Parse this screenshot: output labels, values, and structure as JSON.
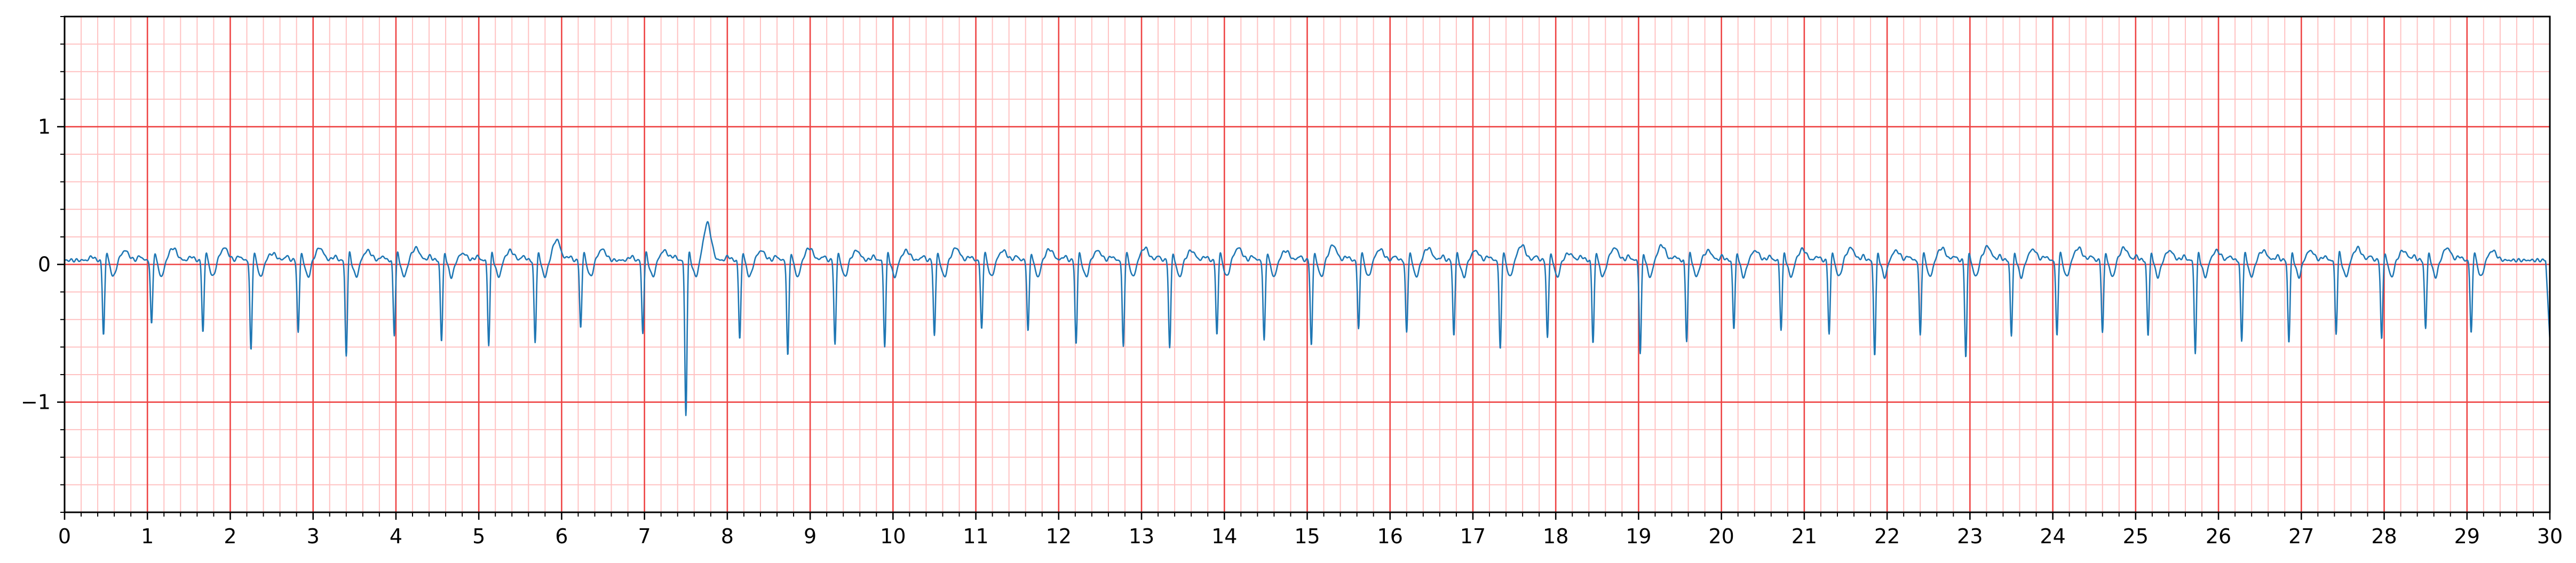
{
  "chart_data": {
    "type": "line",
    "title": "",
    "xlabel": "",
    "ylabel": "",
    "xlim": [
      0,
      30
    ],
    "ylim": [
      -1.8,
      1.8
    ],
    "x_ticks": [
      0,
      1,
      2,
      3,
      4,
      5,
      6,
      7,
      8,
      9,
      10,
      11,
      12,
      13,
      14,
      15,
      16,
      17,
      18,
      19,
      20,
      21,
      22,
      23,
      24,
      25,
      26,
      27,
      28,
      29,
      30
    ],
    "x_tick_labels": [
      "0",
      "1",
      "2",
      "3",
      "4",
      "5",
      "6",
      "7",
      "8",
      "9",
      "10",
      "11",
      "12",
      "13",
      "14",
      "15",
      "16",
      "17",
      "18",
      "19",
      "20",
      "21",
      "22",
      "23",
      "24",
      "25",
      "26",
      "27",
      "28",
      "29",
      "30"
    ],
    "y_ticks": [
      -1,
      0,
      1
    ],
    "y_tick_labels": [
      "−1",
      "0",
      "1"
    ],
    "grid": {
      "major": true,
      "minor": true,
      "x_major_step": 1,
      "x_minor_step": 0.2,
      "y_major_step": 1,
      "y_minor_step": 0.2,
      "major_color": "#ee4444",
      "minor_color": "#ffc2c2"
    },
    "series": [
      {
        "color": "#1f77b4",
        "beat_times": [
          0.47,
          1.05,
          1.67,
          2.25,
          2.82,
          3.4,
          3.98,
          4.55,
          5.12,
          5.68,
          6.23,
          6.98,
          7.5,
          8.15,
          8.73,
          9.3,
          9.9,
          10.5,
          11.07,
          11.63,
          12.21,
          12.78,
          13.34,
          13.91,
          14.48,
          15.05,
          15.62,
          16.2,
          16.77,
          17.33,
          17.9,
          18.45,
          19.02,
          19.58,
          20.15,
          20.72,
          21.3,
          21.85,
          22.4,
          22.95,
          23.5,
          24.05,
          24.6,
          25.15,
          25.72,
          26.28,
          26.85,
          27.42,
          27.97,
          28.5,
          29.05
        ],
        "beat_depths": [
          -0.54,
          -0.47,
          -0.52,
          -0.66,
          -0.53,
          -0.69,
          -0.54,
          -0.59,
          -0.61,
          -0.6,
          -0.49,
          -0.53,
          -1.12,
          -0.57,
          -0.7,
          -0.61,
          -0.62,
          -0.55,
          -0.5,
          -0.52,
          -0.61,
          -0.63,
          -0.64,
          -0.54,
          -0.59,
          -0.62,
          -0.5,
          -0.53,
          -0.55,
          -0.65,
          -0.57,
          -0.6,
          -0.68,
          -0.58,
          -0.5,
          -0.5,
          -0.53,
          -0.69,
          -0.55,
          -0.7,
          -0.55,
          -0.55,
          -0.52,
          -0.55,
          -0.67,
          -0.59,
          -0.6,
          -0.53,
          -0.58,
          -0.5,
          -0.53
        ],
        "t_wave_heights": [
          0.1,
          0.12,
          0.12,
          0.08,
          0.12,
          0.1,
          0.12,
          0.08,
          0.1,
          0.18,
          0.11,
          0.1,
          0.3,
          0.1,
          0.12,
          0.1,
          0.1,
          0.12,
          0.1,
          0.11,
          0.1,
          0.12,
          0.1,
          0.12,
          0.1,
          0.14,
          0.11,
          0.12,
          0.1,
          0.14,
          0.08,
          0.12,
          0.14,
          0.1,
          0.1,
          0.11,
          0.12,
          0.1,
          0.12,
          0.13,
          0.11,
          0.12,
          0.12,
          0.1,
          0.1,
          0.1,
          0.1,
          0.12,
          0.1,
          0.12,
          0.1
        ],
        "baseline": 0.03,
        "trace_end": [
          30,
          -0.55
        ]
      }
    ]
  }
}
